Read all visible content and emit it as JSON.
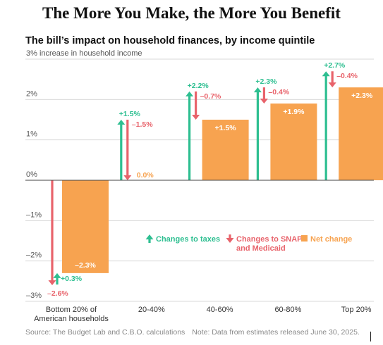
{
  "title": "The More You Make, the More You Benefit",
  "subtitle": "The bill’s impact on household finances, by income quintile",
  "footer": {
    "source": "Source: The Budget Lab and C.B.O. calculations",
    "note": "Note: Data from estimates released June 30, 2025."
  },
  "colors": {
    "taxes": "#2ebf91",
    "snap": "#e8636b",
    "net": "#f7a350",
    "grid": "#d9d9d9",
    "zero": "#444444"
  },
  "chart_data": {
    "type": "bar",
    "ylabel": "3% increase in household income",
    "ylim": [
      -3,
      3
    ],
    "yticks": [
      {
        "value": 3,
        "label": "3% increase in household income"
      },
      {
        "value": 2,
        "label": "2%"
      },
      {
        "value": 1,
        "label": "1%"
      },
      {
        "value": 0,
        "label": "0%"
      },
      {
        "value": -1,
        "label": "–1%"
      },
      {
        "value": -2,
        "label": "–2%"
      },
      {
        "value": -3,
        "label": "–3%"
      }
    ],
    "categories": [
      "Bottom 20% of American households",
      "20-40%",
      "40-60%",
      "60-80%",
      "Top 20%"
    ],
    "category_labels": [
      [
        "Bottom 20% of",
        "American households"
      ],
      [
        "20-40%"
      ],
      [
        "40-60%"
      ],
      [
        "60-80%"
      ],
      [
        "Top 20%"
      ]
    ],
    "series": [
      {
        "name": "Changes to taxes",
        "key": "taxes",
        "values": [
          0.3,
          1.5,
          2.2,
          2.3,
          2.7
        ],
        "labels": [
          "+0.3%",
          "+1.5%",
          "+2.2%",
          "+2.3%",
          "+2.7%"
        ]
      },
      {
        "name": "Changes to SNAP and Medicaid",
        "key": "snap",
        "values": [
          -2.6,
          -1.5,
          -0.7,
          -0.4,
          -0.4
        ],
        "labels": [
          "–2.6%",
          "–1.5%",
          "–0.7%",
          "–0.4%",
          "–0.4%"
        ]
      },
      {
        "name": "Net change",
        "key": "net",
        "values": [
          -2.3,
          0.0,
          1.5,
          1.9,
          2.3
        ],
        "labels": [
          "–2.3%",
          "0.0%",
          "+1.5%",
          "+1.9%",
          "+2.3%"
        ]
      }
    ],
    "legend": [
      {
        "key": "taxes",
        "text": [
          "Changes to taxes"
        ]
      },
      {
        "key": "snap",
        "text": [
          "Changes to SNAP",
          "and Medicaid"
        ]
      },
      {
        "key": "net",
        "text": [
          "Net change"
        ]
      }
    ]
  }
}
